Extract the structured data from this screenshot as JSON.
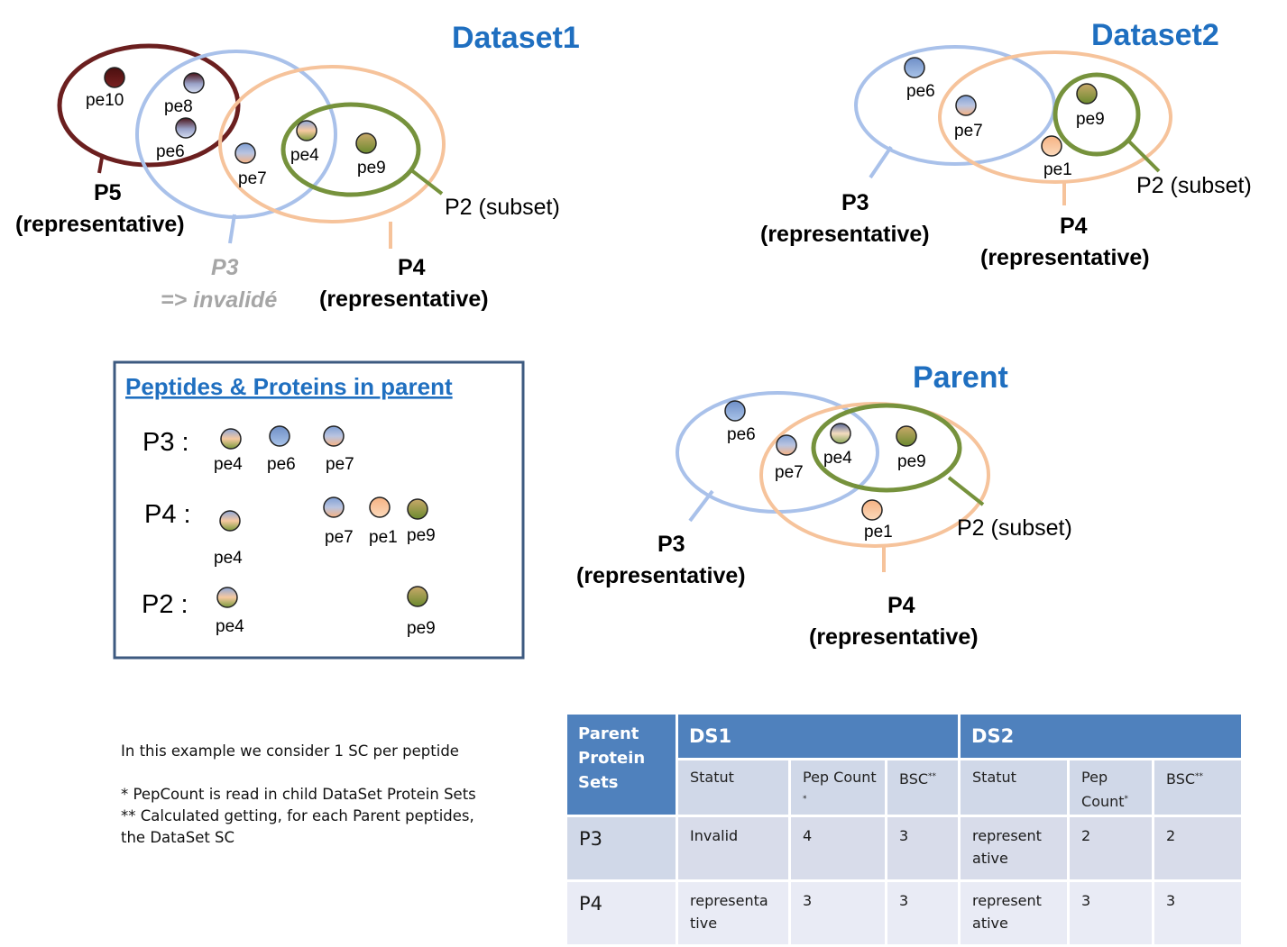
{
  "dataset1": {
    "title": "Dataset1",
    "proteins": {
      "p5": "P5",
      "p5_role": "(representative)",
      "p3": "P3",
      "p3_role": "=> invalidé",
      "p4": "P4",
      "p4_role": "(representative)",
      "p2": "P2 (subset)"
    },
    "peptides": [
      "pe10",
      "pe8",
      "pe6",
      "pe7",
      "pe4",
      "pe9"
    ]
  },
  "dataset2": {
    "title": "Dataset2",
    "proteins": {
      "p3": "P3",
      "p3_role": "(representative)",
      "p4": "P4",
      "p4_role": "(representative)",
      "p2": "P2 (subset)"
    },
    "peptides": [
      "pe6",
      "pe7",
      "pe9",
      "pe1"
    ]
  },
  "parent": {
    "title": "Parent",
    "proteins": {
      "p3": "P3",
      "p3_role": "(representative)",
      "p4": "P4",
      "p4_role": "(representative)",
      "p2": "P2 (subset)"
    },
    "peptides": [
      "pe6",
      "pe7",
      "pe4",
      "pe9",
      "pe1"
    ]
  },
  "peptides_box": {
    "title": "Peptides & Proteins in parent",
    "rows": [
      {
        "label": "P3 :",
        "peptides": [
          "pe4",
          "pe6",
          "pe7"
        ]
      },
      {
        "label": "P4 :",
        "peptides": [
          "pe4",
          "pe7",
          "pe1",
          "pe9"
        ]
      },
      {
        "label": "P2 :",
        "peptides": [
          "pe4",
          "pe9"
        ]
      }
    ]
  },
  "notes": {
    "line1": "In this example we consider 1 SC per peptide",
    "line2": "* PepCount is read in child DataSet Protein Sets",
    "line3": "** Calculated getting, for each Parent peptides,",
    "line4": "the DataSet SC"
  },
  "table": {
    "corner": "Parent Protein Sets",
    "groups": [
      "DS1",
      "DS2"
    ],
    "subheaders": {
      "statut": "Statut",
      "pep": "Pep Count",
      "pep_mark1": "*",
      "pep_mark2": "*",
      "bsc": "BSC",
      "bsc_mark": "**"
    },
    "rows": [
      {
        "protein": "P3",
        "ds1_statut": "Invalid",
        "ds1_pep": "4",
        "ds1_bsc": "3",
        "ds2_statut": "represent ative",
        "ds2_pep": "2",
        "ds2_bsc": "2"
      },
      {
        "protein": "P4",
        "ds1_statut": "representa tive",
        "ds1_pep": "3",
        "ds1_bsc": "3",
        "ds2_statut": "represent ative",
        "ds2_pep": "3",
        "ds2_bsc": "3"
      }
    ]
  },
  "colors": {
    "title_blue": "#1f6fc0",
    "p5_maroon": "#6b1f1f",
    "p3_blue": "#a9c1ea",
    "p4_orange": "#f6c39b",
    "p2_green": "#76923c",
    "invalid_gray": "#a6a6a6",
    "table_header": "#4f81bd",
    "table_sub": "#d0d8e8"
  }
}
